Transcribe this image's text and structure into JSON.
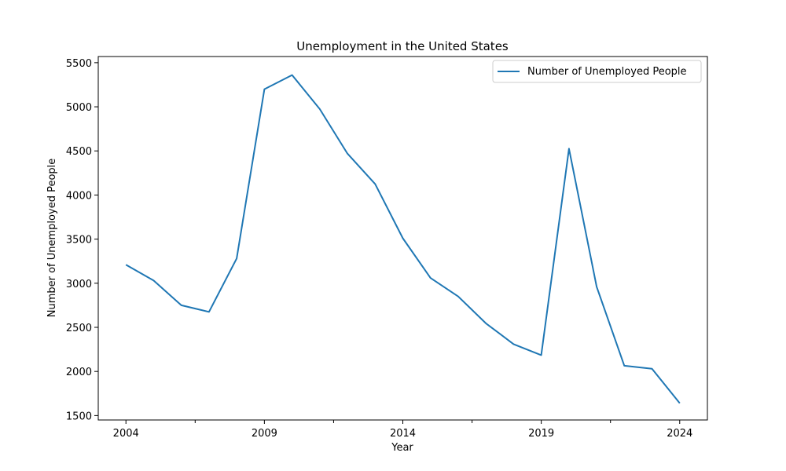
{
  "chart_data": {
    "type": "line",
    "title": "Unemployment in the United States",
    "xlabel": "Year",
    "ylabel": "Number of Unemployed People",
    "x": [
      2004,
      2005,
      2006,
      2007,
      2008,
      2009,
      2010,
      2011,
      2012,
      2013,
      2014,
      2015,
      2016,
      2017,
      2018,
      2019,
      2020,
      2021,
      2022,
      2023,
      2024
    ],
    "series": [
      {
        "name": "Number of Unemployed People",
        "color": "#1f77b4",
        "values": [
          3210,
          3030,
          2750,
          2675,
          3280,
          5200,
          5360,
          4975,
          4470,
          4125,
          3510,
          3060,
          2850,
          2545,
          2310,
          2185,
          4525,
          2960,
          2065,
          2030,
          1640
        ]
      }
    ],
    "xlim": [
      2003,
      2025
    ],
    "ylim": [
      1450,
      5570
    ],
    "xticks": [
      2004,
      2009,
      2014,
      2019,
      2024
    ],
    "xticks_minor": [
      2006.5,
      2011.5,
      2016.5,
      2021.5
    ],
    "yticks": [
      1500,
      2000,
      2500,
      3000,
      3500,
      4000,
      4500,
      5000,
      5500
    ],
    "grid": false,
    "legend_position": "upper right"
  }
}
